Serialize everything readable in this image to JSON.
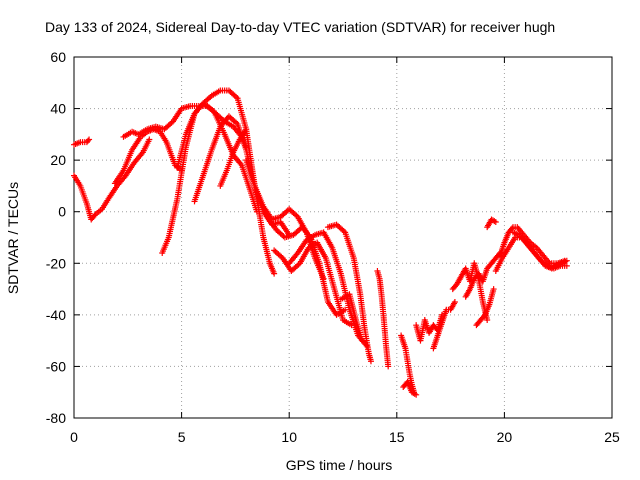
{
  "chart_data": {
    "type": "scatter",
    "title": "Day 133 of 2024, Sidereal Day-to-day VTEC variation (SDTVAR) for receiver hugh",
    "xlabel": "GPS time / hours",
    "ylabel": "SDTVAR / TECUs",
    "xlim": [
      0,
      25
    ],
    "ylim": [
      -80,
      60
    ],
    "xticks": [
      0,
      5,
      10,
      15,
      20,
      25
    ],
    "yticks": [
      -80,
      -60,
      -40,
      -20,
      0,
      20,
      40,
      60
    ],
    "xtick_labels": [
      "0",
      "5",
      "10",
      "15",
      "20",
      "25"
    ],
    "ytick_labels": [
      "-80",
      "-60",
      "-40",
      "-20",
      "0",
      "20",
      "40",
      "60"
    ],
    "grid": true,
    "marker": "+",
    "color": "#ff0000",
    "series": [
      {
        "x": [
          0.0,
          0.3,
          0.6,
          0.7
        ],
        "y": [
          26,
          27,
          27,
          28
        ]
      },
      {
        "x": [
          0.0,
          0.3,
          0.6,
          0.8,
          1.0,
          1.3,
          1.6,
          2.0,
          2.4,
          2.8,
          3.2,
          3.5
        ],
        "y": [
          14,
          10,
          3,
          -3,
          -1,
          1,
          5,
          10,
          14,
          19,
          23,
          28
        ]
      },
      {
        "x": [
          2.3,
          2.7,
          3.0,
          3.4,
          3.8,
          4.2,
          4.6,
          5.0,
          5.4,
          5.8,
          6.2,
          6.6,
          7.0,
          7.4,
          7.8,
          8.0
        ],
        "y": [
          29,
          31,
          30,
          32,
          33,
          32,
          35,
          40,
          41,
          41,
          41,
          38,
          35,
          33,
          29,
          25
        ]
      },
      {
        "x": [
          1.9,
          2.3,
          2.7,
          3.1,
          3.4,
          3.7,
          4.0,
          4.3,
          4.7,
          5.0
        ],
        "y": [
          11,
          16,
          24,
          29,
          31,
          32,
          31,
          27,
          18,
          16
        ]
      },
      {
        "x": [
          4.1,
          4.4,
          4.8,
          5.2,
          5.6,
          6.0,
          6.4,
          6.8,
          7.2,
          7.6,
          8.0,
          8.4,
          8.8,
          9.1,
          9.3
        ],
        "y": [
          -16,
          -10,
          5,
          25,
          38,
          42,
          45,
          47,
          47,
          44,
          32,
          10,
          -10,
          -20,
          -24
        ]
      },
      {
        "x": [
          4.8,
          5.2,
          5.6,
          6.0,
          6.5,
          7.0,
          7.4,
          7.8,
          8.2,
          8.5
        ],
        "y": [
          17,
          30,
          38,
          42,
          39,
          30,
          22,
          18,
          8,
          0
        ]
      },
      {
        "x": [
          5.6,
          6.0,
          6.4,
          6.8,
          7.2,
          7.6,
          8.0,
          8.4,
          8.8,
          9.2,
          9.6,
          10.0
        ],
        "y": [
          4,
          14,
          24,
          33,
          37,
          34,
          24,
          10,
          0,
          -5,
          -4,
          -9
        ]
      },
      {
        "x": [
          6.8,
          7.1,
          7.4,
          7.7,
          8.0
        ],
        "y": [
          10,
          16,
          23,
          28,
          32
        ]
      },
      {
        "x": [
          8.0,
          8.4,
          8.8,
          9.2,
          9.6,
          10.0,
          10.4,
          10.8,
          11.2,
          11.6
        ],
        "y": [
          20,
          10,
          2,
          -3,
          -2,
          1,
          -2,
          -8,
          -18,
          -26
        ]
      },
      {
        "x": [
          9.0,
          9.4,
          9.8,
          10.2,
          10.6,
          11.0,
          11.4,
          11.8,
          12.2,
          12.6
        ],
        "y": [
          -2,
          -7,
          -10,
          -9,
          -6,
          -10,
          -20,
          -35,
          -40,
          -38
        ]
      },
      {
        "x": [
          9.3,
          9.7,
          10.1,
          10.5,
          10.9,
          11.3,
          11.7,
          12.1,
          12.5,
          12.9
        ],
        "y": [
          -15,
          -18,
          -23,
          -20,
          -14,
          -12,
          -18,
          -30,
          -42,
          -44
        ]
      },
      {
        "x": [
          10.0,
          10.4,
          10.8,
          11.2,
          11.6,
          12.0,
          12.4,
          12.8,
          13.2,
          13.6
        ],
        "y": [
          -20,
          -16,
          -11,
          -9,
          -8,
          -14,
          -24,
          -38,
          -48,
          -52
        ]
      },
      {
        "x": [
          11.8,
          12.2,
          12.6,
          13.0,
          13.3,
          13.5,
          13.7,
          13.8
        ],
        "y": [
          -6,
          -5,
          -8,
          -18,
          -32,
          -45,
          -55,
          -58
        ]
      },
      {
        "x": [
          12.4,
          12.8,
          13.1,
          13.4
        ],
        "y": [
          -34,
          -32,
          -42,
          -50
        ]
      },
      {
        "x": [
          14.1,
          14.2,
          14.3,
          14.4,
          14.5,
          14.6
        ],
        "y": [
          -23,
          -26,
          -33,
          -42,
          -52,
          -60
        ]
      },
      {
        "x": [
          15.2,
          15.4,
          15.5,
          15.6,
          15.7,
          15.8
        ],
        "y": [
          -48,
          -53,
          -58,
          -63,
          -67,
          -70
        ]
      },
      {
        "x": [
          15.3,
          15.5,
          15.7,
          15.9
        ],
        "y": [
          -68,
          -66,
          -70,
          -71
        ]
      },
      {
        "x": [
          15.9,
          16.1,
          16.3,
          16.5,
          16.7,
          16.9,
          17.1
        ],
        "y": [
          -44,
          -50,
          -42,
          -47,
          -44,
          -46,
          -40
        ]
      },
      {
        "x": [
          16.7,
          16.9,
          17.1,
          17.3,
          17.5,
          17.7
        ],
        "y": [
          -53,
          -48,
          -43,
          -38,
          -38,
          -35
        ]
      },
      {
        "x": [
          17.6,
          17.8,
          18.0,
          18.2,
          18.4,
          18.6,
          18.8,
          19.0,
          19.2
        ],
        "y": [
          -30,
          -28,
          -25,
          -22,
          -27,
          -20,
          -26,
          -35,
          -42
        ]
      },
      {
        "x": [
          18.2,
          18.4,
          18.6,
          18.8,
          19.0,
          19.2,
          19.4,
          19.6,
          19.8
        ],
        "y": [
          -33,
          -30,
          -26,
          -24,
          -27,
          -22,
          -20,
          -18,
          -16
        ]
      },
      {
        "x": [
          18.7,
          18.9,
          19.1,
          19.3,
          19.5
        ],
        "y": [
          -44,
          -42,
          -40,
          -36,
          -30
        ]
      },
      {
        "x": [
          19.2,
          19.4,
          19.6
        ],
        "y": [
          -6,
          -3,
          -4
        ]
      },
      {
        "x": [
          19.8,
          20.0,
          20.2,
          20.4,
          20.6,
          20.9,
          21.2,
          21.5,
          21.8,
          22.1,
          22.4,
          22.7,
          22.9
        ],
        "y": [
          -17,
          -12,
          -8,
          -6,
          -6,
          -9,
          -12,
          -14,
          -17,
          -20,
          -20,
          -20,
          -19
        ]
      },
      {
        "x": [
          19.6,
          19.9,
          20.2,
          20.5,
          20.8,
          21.1,
          21.4,
          21.7,
          22.0,
          22.3,
          22.6,
          22.9
        ],
        "y": [
          -23,
          -18,
          -14,
          -10,
          -10,
          -13,
          -16,
          -19,
          -21,
          -22,
          -21,
          -21
        ]
      },
      {
        "x": [
          20.4,
          20.7,
          21.0,
          21.3,
          21.6,
          21.9,
          22.2,
          22.5,
          22.8
        ],
        "y": [
          -8,
          -9,
          -12,
          -15,
          -18,
          -21,
          -22,
          -20,
          -19
        ]
      }
    ]
  }
}
